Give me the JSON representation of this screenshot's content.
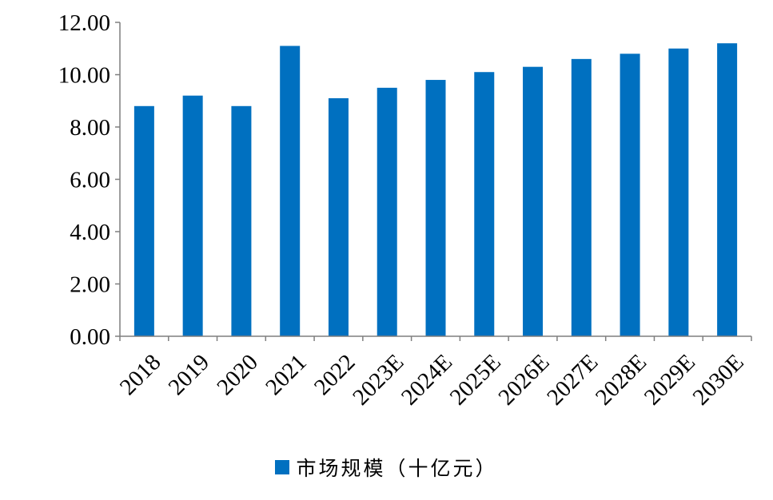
{
  "chart_data": {
    "type": "bar",
    "categories": [
      "2018",
      "2019",
      "2020",
      "2021",
      "2022",
      "2023E",
      "2024E",
      "2025E",
      "2026E",
      "2027E",
      "2028E",
      "2029E",
      "2030E"
    ],
    "series": [
      {
        "name": "市场规模（十亿元）",
        "values": [
          8.8,
          9.2,
          8.8,
          11.1,
          9.1,
          9.5,
          9.8,
          10.1,
          10.3,
          10.6,
          10.8,
          11.0,
          11.2
        ],
        "color": "#0070c0"
      }
    ],
    "yticks": [
      "0.00",
      "2.00",
      "4.00",
      "6.00",
      "8.00",
      "10.00",
      "12.00"
    ],
    "ylim": [
      0,
      12
    ],
    "grid": false,
    "legend_position": "bottom",
    "title": "",
    "xlabel": "",
    "ylabel": ""
  }
}
